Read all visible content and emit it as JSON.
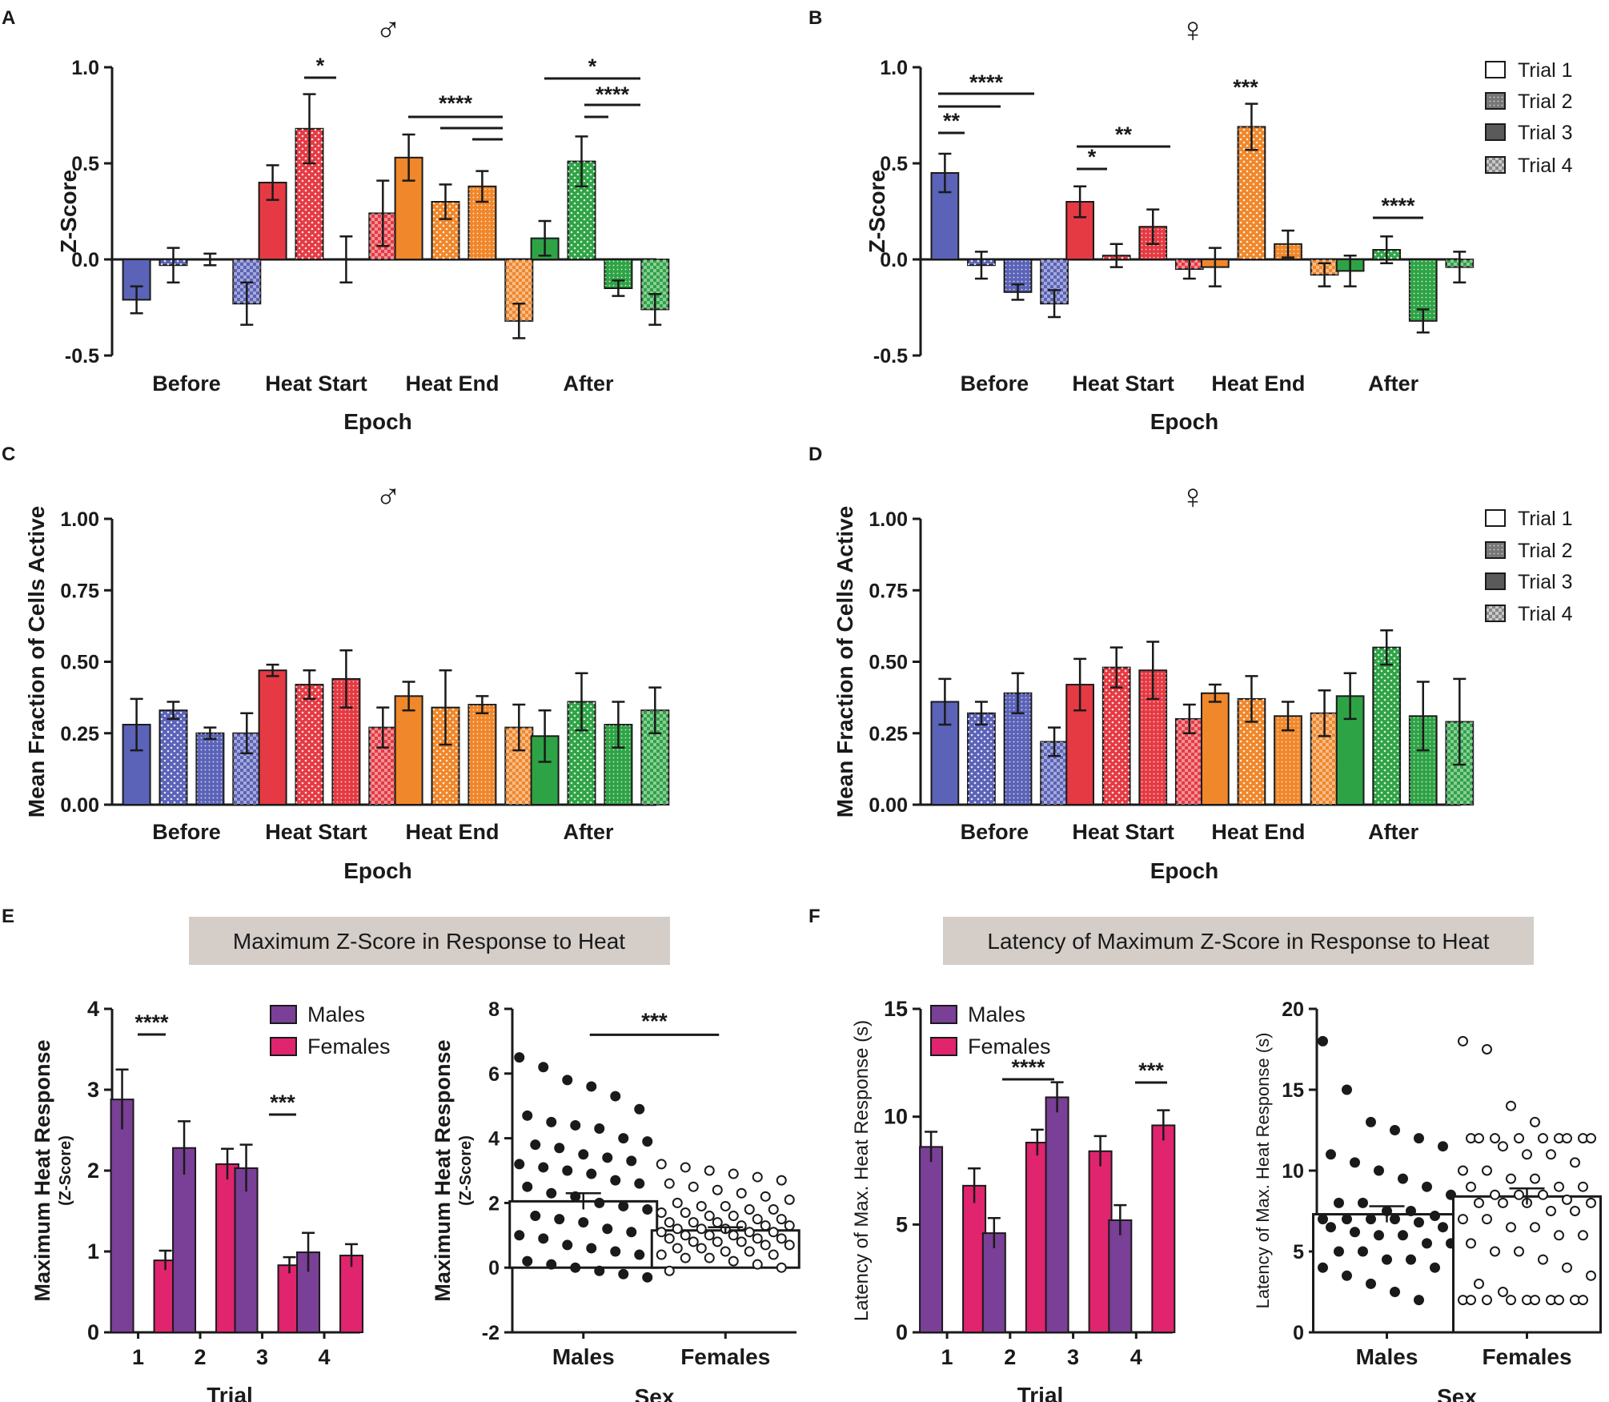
{
  "colors": {
    "before": "#5b63b8",
    "heat_start": "#e53a43",
    "heat_end": "#f0872a",
    "after": "#2ea345",
    "males": "#7a3f96",
    "females": "#e0246e",
    "banner": "#d4cdc8"
  },
  "symbols": {
    "male": "♂",
    "female": "♀"
  },
  "banners": {
    "E": "Maximum Z-Score in Response to Heat",
    "F": "Latency of Maximum Z-Score in Response to Heat"
  },
  "legends": {
    "trials": [
      "Trial 1",
      "Trial 2",
      "Trial 3",
      "Trial 4"
    ],
    "sex": [
      "Males",
      "Females"
    ]
  },
  "chart_data": [
    {
      "id": "A",
      "type": "bar",
      "sex_symbol": "♂",
      "ylabel": "Z-Score",
      "xlabel": "Epoch",
      "ylim": [
        -0.5,
        1.0
      ],
      "yticks": [
        "-0.5",
        "0.0",
        "0.5",
        "1.0"
      ],
      "categories": [
        "Before",
        "Heat Start",
        "Heat End",
        "After"
      ],
      "series": [
        {
          "name": "Trial 1",
          "values": [
            -0.21,
            0.4,
            0.53,
            0.11
          ],
          "errors": [
            0.07,
            0.09,
            0.12,
            0.09
          ]
        },
        {
          "name": "Trial 2",
          "values": [
            -0.03,
            0.68,
            0.3,
            0.51
          ],
          "errors": [
            0.09,
            0.18,
            0.09,
            0.13
          ]
        },
        {
          "name": "Trial 3",
          "values": [
            0.0,
            0.0,
            0.38,
            -0.15
          ],
          "errors": [
            0.03,
            0.12,
            0.08,
            0.04
          ]
        },
        {
          "name": "Trial 4",
          "values": [
            -0.23,
            0.24,
            -0.32,
            -0.26
          ],
          "errors": [
            0.11,
            0.17,
            0.09,
            0.08
          ]
        }
      ],
      "significance": [
        "*",
        "****",
        "*",
        "****"
      ]
    },
    {
      "id": "B",
      "type": "bar",
      "sex_symbol": "♀",
      "ylabel": "Z-Score",
      "xlabel": "Epoch",
      "ylim": [
        -0.5,
        1.0
      ],
      "yticks": [
        "-0.5",
        "0.0",
        "0.5",
        "1.0"
      ],
      "categories": [
        "Before",
        "Heat Start",
        "Heat End",
        "After"
      ],
      "series": [
        {
          "name": "Trial 1",
          "values": [
            0.45,
            0.3,
            -0.04,
            -0.06
          ],
          "errors": [
            0.1,
            0.08,
            0.1,
            0.08
          ]
        },
        {
          "name": "Trial 2",
          "values": [
            -0.03,
            0.02,
            0.69,
            0.05
          ],
          "errors": [
            0.07,
            0.06,
            0.12,
            0.07
          ]
        },
        {
          "name": "Trial 3",
          "values": [
            -0.17,
            0.17,
            0.08,
            -0.32
          ],
          "errors": [
            0.04,
            0.09,
            0.07,
            0.06
          ]
        },
        {
          "name": "Trial 4",
          "values": [
            -0.23,
            -0.05,
            -0.08,
            -0.04
          ],
          "errors": [
            0.07,
            0.05,
            0.06,
            0.08
          ]
        }
      ],
      "significance": [
        "**",
        "****",
        "*",
        "**",
        "***",
        "****"
      ]
    },
    {
      "id": "C",
      "type": "bar",
      "sex_symbol": "♂",
      "ylabel": "Mean Fraction of Cells Active",
      "xlabel": "Epoch",
      "ylim": [
        0,
        1.0
      ],
      "yticks": [
        "0.00",
        "0.25",
        "0.50",
        "0.75",
        "1.00"
      ],
      "categories": [
        "Before",
        "Heat Start",
        "Heat End",
        "After"
      ],
      "series": [
        {
          "name": "Trial 1",
          "values": [
            0.28,
            0.47,
            0.38,
            0.24
          ],
          "errors": [
            0.09,
            0.02,
            0.05,
            0.09
          ]
        },
        {
          "name": "Trial 2",
          "values": [
            0.33,
            0.42,
            0.34,
            0.36
          ],
          "errors": [
            0.03,
            0.05,
            0.13,
            0.1
          ]
        },
        {
          "name": "Trial 3",
          "values": [
            0.25,
            0.44,
            0.35,
            0.28
          ],
          "errors": [
            0.02,
            0.1,
            0.03,
            0.08
          ]
        },
        {
          "name": "Trial 4",
          "values": [
            0.25,
            0.27,
            0.27,
            0.33
          ],
          "errors": [
            0.07,
            0.07,
            0.08,
            0.08
          ]
        }
      ]
    },
    {
      "id": "D",
      "type": "bar",
      "sex_symbol": "♀",
      "ylabel": "Mean Fraction of Cells Active",
      "xlabel": "Epoch",
      "ylim": [
        0,
        1.0
      ],
      "yticks": [
        "0.00",
        "0.25",
        "0.50",
        "0.75",
        "1.00"
      ],
      "categories": [
        "Before",
        "Heat Start",
        "Heat End",
        "After"
      ],
      "series": [
        {
          "name": "Trial 1",
          "values": [
            0.36,
            0.42,
            0.39,
            0.38
          ],
          "errors": [
            0.08,
            0.09,
            0.03,
            0.08
          ]
        },
        {
          "name": "Trial 2",
          "values": [
            0.32,
            0.48,
            0.37,
            0.55
          ],
          "errors": [
            0.04,
            0.07,
            0.08,
            0.06
          ]
        },
        {
          "name": "Trial 3",
          "values": [
            0.39,
            0.47,
            0.31,
            0.31
          ],
          "errors": [
            0.07,
            0.1,
            0.05,
            0.12
          ]
        },
        {
          "name": "Trial 4",
          "values": [
            0.22,
            0.3,
            0.32,
            0.29
          ],
          "errors": [
            0.05,
            0.05,
            0.08,
            0.15
          ]
        }
      ]
    },
    {
      "id": "E1",
      "type": "bar",
      "ylabel": "Maximum Heat Response",
      "ylabel2": "(Z-Score)",
      "xlabel": "Trial",
      "ylim": [
        0,
        4
      ],
      "yticks": [
        "0",
        "1",
        "2",
        "3",
        "4"
      ],
      "categories": [
        "1",
        "2",
        "3",
        "4"
      ],
      "series": [
        {
          "name": "Males",
          "values": [
            2.88,
            2.28,
            2.03,
            0.99
          ],
          "errors": [
            0.37,
            0.33,
            0.29,
            0.24
          ]
        },
        {
          "name": "Females",
          "values": [
            0.89,
            2.08,
            0.83,
            0.95
          ],
          "errors": [
            0.12,
            0.19,
            0.1,
            0.14
          ]
        }
      ],
      "significance": [
        "****",
        "***"
      ]
    },
    {
      "id": "E2",
      "type": "scatter",
      "ylabel": "Maximum Heat Response",
      "ylabel2": "(Z-Score)",
      "xlabel": "Sex",
      "ylim": [
        -2,
        8
      ],
      "yticks": [
        "-2",
        "0",
        "2",
        "4",
        "6",
        "8"
      ],
      "categories": [
        "Males",
        "Females"
      ],
      "bar_values": [
        2.05,
        1.15
      ],
      "bar_errors": [
        0.25,
        0.1
      ],
      "points_males": [
        6.5,
        6.2,
        5.8,
        5.6,
        5.3,
        4.9,
        4.7,
        4.5,
        4.4,
        4.3,
        4.0,
        3.9,
        3.8,
        3.7,
        3.5,
        3.4,
        3.3,
        3.2,
        3.1,
        3.0,
        2.9,
        2.7,
        2.6,
        2.5,
        2.3,
        2.2,
        2.0,
        1.9,
        1.8,
        1.6,
        1.5,
        1.4,
        1.2,
        1.1,
        1.0,
        0.9,
        0.7,
        0.6,
        0.5,
        0.4,
        0.2,
        0.1,
        0.0,
        -0.1,
        -0.2,
        -0.3
      ],
      "points_females": [
        3.2,
        3.1,
        3.0,
        2.9,
        2.8,
        2.7,
        2.6,
        2.5,
        2.4,
        2.3,
        2.2,
        2.1,
        2.0,
        1.9,
        1.9,
        1.8,
        1.8,
        1.7,
        1.7,
        1.6,
        1.6,
        1.5,
        1.5,
        1.4,
        1.4,
        1.4,
        1.3,
        1.3,
        1.3,
        1.2,
        1.2,
        1.2,
        1.1,
        1.1,
        1.1,
        1.0,
        1.0,
        1.0,
        0.9,
        0.9,
        0.9,
        0.8,
        0.8,
        0.8,
        0.7,
        0.7,
        0.6,
        0.6,
        0.5,
        0.5,
        0.4,
        0.4,
        0.3,
        0.3,
        0.2,
        0.1,
        0.0,
        -0.1
      ],
      "significance": [
        "***"
      ]
    },
    {
      "id": "F1",
      "type": "bar",
      "ylabel": "Latency of Max. Heat Response (s)",
      "xlabel": "Trial",
      "ylim": [
        0,
        15
      ],
      "yticks": [
        "0",
        "5",
        "10",
        "15"
      ],
      "categories": [
        "1",
        "2",
        "3",
        "4"
      ],
      "series": [
        {
          "name": "Males",
          "values": [
            8.6,
            4.6,
            10.9,
            5.2
          ],
          "errors": [
            0.7,
            0.7,
            0.7,
            0.7
          ]
        },
        {
          "name": "Females",
          "values": [
            6.8,
            8.8,
            8.4,
            9.6
          ],
          "errors": [
            0.8,
            0.6,
            0.7,
            0.7
          ]
        }
      ],
      "significance": [
        "****",
        "***"
      ]
    },
    {
      "id": "F2",
      "type": "scatter",
      "ylabel": "Latency of Max. Heat Response (s)",
      "xlabel": "Sex",
      "ylim": [
        0,
        20
      ],
      "yticks": [
        "0",
        "5",
        "10",
        "15",
        "20"
      ],
      "categories": [
        "Males",
        "Females"
      ],
      "bar_values": [
        7.3,
        8.4
      ],
      "bar_errors": [
        0.5,
        0.5
      ],
      "points_males": [
        18,
        15,
        13,
        12.5,
        12,
        11.5,
        11,
        10.5,
        10,
        9.5,
        9,
        8.5,
        8,
        8,
        7.5,
        7.5,
        7.2,
        7,
        7,
        7,
        7,
        6.8,
        6.5,
        6.5,
        6.2,
        6,
        6,
        5.5,
        5.5,
        5,
        5,
        4.5,
        4.5,
        4,
        4,
        3.5,
        3,
        2.5,
        2
      ],
      "points_females": [
        18,
        17.5,
        14,
        13,
        12,
        12,
        12,
        12,
        12,
        12,
        12,
        12,
        12,
        11.5,
        11,
        11,
        10.5,
        10,
        10,
        9.5,
        9.5,
        9,
        9,
        9,
        8.5,
        8.5,
        8.5,
        8.2,
        8,
        8,
        8,
        8,
        7.5,
        7.5,
        7,
        7,
        6.5,
        6.5,
        6,
        6,
        5.5,
        5,
        5,
        4.5,
        4,
        3.5,
        3,
        2.5,
        2,
        2,
        2,
        2,
        2,
        2,
        2,
        2,
        2,
        2
      ],
      "significance": []
    }
  ]
}
